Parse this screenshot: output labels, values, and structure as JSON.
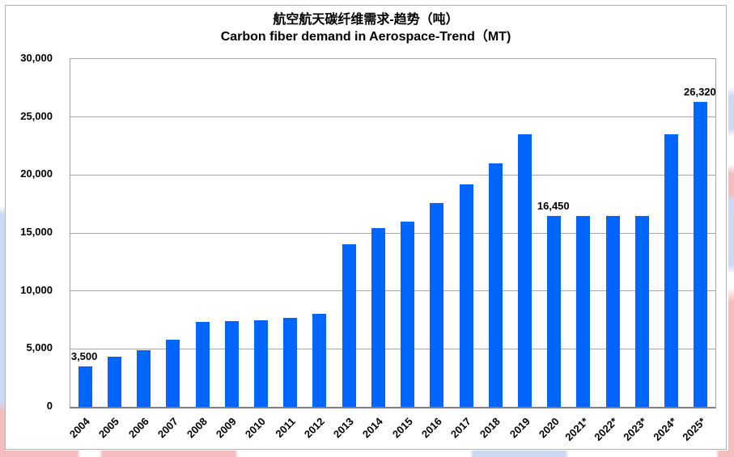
{
  "chart_data": {
    "type": "bar",
    "title_zh": "航空航天碳纤维需求-趋势（吨）",
    "title_en": "Carbon fiber demand in Aerospace-Trend（MT)",
    "categories": [
      "2004",
      "2005",
      "2006",
      "2007",
      "2008",
      "2009",
      "2010",
      "2011",
      "2012",
      "2013",
      "2014",
      "2015",
      "2016",
      "2017",
      "2018",
      "2019",
      "2020",
      "2021*",
      "2022*",
      "2023*",
      "2024*",
      "2025*"
    ],
    "values": [
      3500,
      4300,
      4900,
      5800,
      7300,
      7400,
      7500,
      7700,
      8000,
      14000,
      15400,
      16000,
      17600,
      19200,
      21000,
      23500,
      16450,
      16450,
      16450,
      16450,
      23500,
      26320
    ],
    "xlabel": "",
    "ylabel": "",
    "ylim": [
      0,
      30000
    ],
    "ytick_step": 5000,
    "ytick_labels": [
      "0",
      "5,000",
      "10,000",
      "15,000",
      "20,000",
      "25,000",
      "30,000"
    ],
    "grid": true,
    "legend": "none",
    "bar_color": "#0066fb",
    "gridline_color": "#a6a6a6",
    "data_labels": [
      {
        "category": "2004",
        "text": "3,500"
      },
      {
        "category": "2020",
        "text": "16,450"
      },
      {
        "category": "2025*",
        "text": "26,320"
      }
    ]
  },
  "background": {
    "stripe_pink": "#f4bcbc",
    "stripe_blue": "#ccd9f4"
  }
}
